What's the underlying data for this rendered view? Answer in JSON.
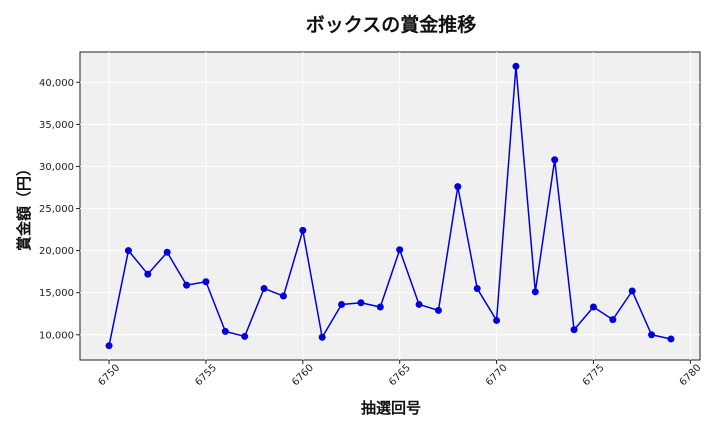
{
  "chart_data": {
    "type": "line",
    "title": "ボックスの賞金推移",
    "xlabel": "抽選回号",
    "ylabel": "賞金額（円）",
    "xlim": [
      6748.5,
      6780.5
    ],
    "ylim": [
      7000,
      43600
    ],
    "xticks": [
      6750,
      6755,
      6760,
      6765,
      6770,
      6775,
      6780
    ],
    "yticks": [
      10000,
      15000,
      20000,
      25000,
      30000,
      35000,
      40000
    ],
    "ytick_labels": [
      "10,000",
      "15,000",
      "20,000",
      "25,000",
      "30,000",
      "35,000",
      "40,000"
    ],
    "grid": true,
    "series": [
      {
        "color": "#0000dd",
        "x": [
          6750,
          6751,
          6752,
          6753,
          6754,
          6755,
          6756,
          6757,
          6758,
          6759,
          6760,
          6761,
          6762,
          6763,
          6764,
          6765,
          6766,
          6767,
          6768,
          6769,
          6770,
          6771,
          6772,
          6773,
          6774,
          6775,
          6776,
          6777,
          6778,
          6779
        ],
        "y": [
          8700,
          20000,
          17200,
          19800,
          15900,
          16300,
          10400,
          9800,
          15500,
          14600,
          22400,
          9700,
          13600,
          13800,
          13300,
          20100,
          13600,
          12900,
          27600,
          15500,
          11700,
          41900,
          15100,
          30800,
          10600,
          13300,
          11800,
          15200,
          10000,
          9500
        ]
      }
    ]
  }
}
